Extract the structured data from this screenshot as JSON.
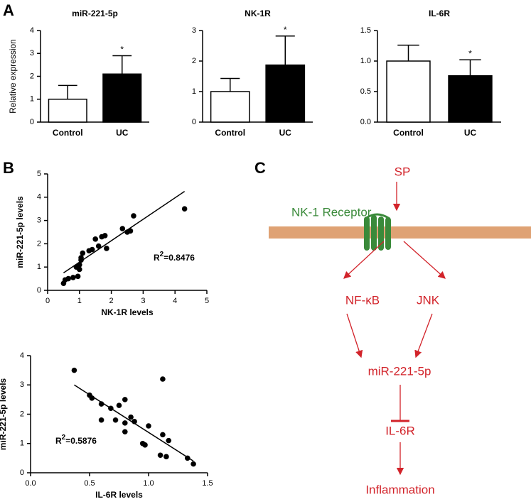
{
  "panel_labels": [
    "A",
    "B",
    "C"
  ],
  "chart_data": [
    {
      "type": "bar",
      "title": "miR-221-5p",
      "ylabel": "Relative expression",
      "categories": [
        "Control",
        "UC"
      ],
      "values": [
        1.0,
        2.1
      ],
      "errors": [
        0.6,
        0.8
      ],
      "colors": [
        "#ffffff",
        "#000000"
      ],
      "annotation": "*",
      "ylim": [
        0,
        4
      ],
      "yticks": [
        0,
        1,
        2,
        3,
        4
      ]
    },
    {
      "type": "bar",
      "title": "NK-1R",
      "categories": [
        "Control",
        "UC"
      ],
      "values": [
        1.0,
        1.87
      ],
      "errors": [
        0.43,
        0.95
      ],
      "colors": [
        "#ffffff",
        "#000000"
      ],
      "annotation": "*",
      "ylim": [
        0,
        3
      ],
      "yticks": [
        0,
        1,
        2,
        3
      ]
    },
    {
      "type": "bar",
      "title": "IL-6R",
      "categories": [
        "Control",
        "UC"
      ],
      "values": [
        1.0,
        0.76
      ],
      "errors": [
        0.26,
        0.26
      ],
      "colors": [
        "#ffffff",
        "#000000"
      ],
      "annotation": "*",
      "ylim": [
        0,
        1.5
      ],
      "yticks": [
        {
          "value": 0,
          "label": "0.0"
        },
        {
          "value": 0.5,
          "label": "0.5"
        },
        {
          "value": 1,
          "label": "1.0"
        },
        {
          "value": 1.5,
          "label": "1.5"
        }
      ]
    },
    {
      "type": "scatter",
      "xlabel": "NK-1R levels",
      "ylabel": "miR-221-5p levels",
      "color": "#000000",
      "x": [
        0.5,
        0.55,
        0.65,
        0.8,
        0.9,
        0.95,
        1.0,
        1.0,
        1.05,
        1.05,
        1.1,
        0.95,
        1.3,
        1.4,
        1.5,
        1.6,
        1.7,
        1.8,
        1.85,
        2.35,
        2.5,
        2.6,
        2.7,
        4.3
      ],
      "y": [
        0.3,
        0.45,
        0.5,
        0.55,
        1.0,
        0.6,
        1.1,
        0.9,
        1.3,
        1.4,
        1.6,
        1.0,
        1.7,
        1.75,
        2.2,
        1.9,
        2.3,
        2.35,
        1.8,
        2.65,
        2.5,
        2.55,
        3.2,
        3.5
      ],
      "fit_line": {
        "x": [
          0.5,
          4.3
        ],
        "y": [
          0.75,
          4.25
        ]
      },
      "annotation": [
        "R",
        "2",
        "=0.8476"
      ],
      "xlim": [
        0,
        5
      ],
      "xticks": [
        0,
        1,
        2,
        3,
        4,
        5
      ],
      "ylim": [
        0,
        5
      ],
      "yticks": [
        0,
        1,
        2,
        3,
        4,
        5
      ]
    },
    {
      "type": "scatter",
      "xlabel": "IL-6R levels",
      "ylabel": "miR-221-5p levels",
      "color": "#000000",
      "x": [
        0.37,
        0.5,
        0.52,
        0.6,
        0.6,
        0.68,
        0.72,
        0.75,
        0.8,
        0.8,
        0.8,
        0.85,
        0.88,
        0.95,
        0.97,
        1.0,
        1.1,
        1.12,
        1.12,
        1.15,
        1.17,
        1.33,
        1.38
      ],
      "y": [
        3.5,
        2.65,
        2.55,
        2.35,
        1.8,
        2.2,
        1.8,
        2.3,
        1.7,
        2.5,
        1.4,
        1.9,
        1.75,
        1.0,
        0.95,
        1.6,
        0.6,
        1.3,
        3.2,
        0.55,
        1.1,
        0.5,
        0.3
      ],
      "fit_line": {
        "x": [
          0.37,
          1.38
        ],
        "y": [
          3.0,
          0.4
        ]
      },
      "annotation": [
        "R",
        "2",
        "=0.5876"
      ],
      "xlim": [
        0,
        1.5
      ],
      "xticks": [
        {
          "value": 0,
          "label": "0.0"
        },
        {
          "value": 0.5,
          "label": "0.5"
        },
        {
          "value": 1,
          "label": "1.0"
        },
        {
          "value": 1.5,
          "label": "1.5"
        }
      ],
      "ylim": [
        0,
        4
      ],
      "yticks": [
        0,
        1,
        2,
        3,
        4
      ]
    }
  ],
  "diagram": {
    "nodes": [
      "SP",
      "NK-1 Receptor",
      "NF-κB",
      "JNK",
      "miR-221-5p",
      "IL-6R",
      "Inflammation"
    ]
  }
}
